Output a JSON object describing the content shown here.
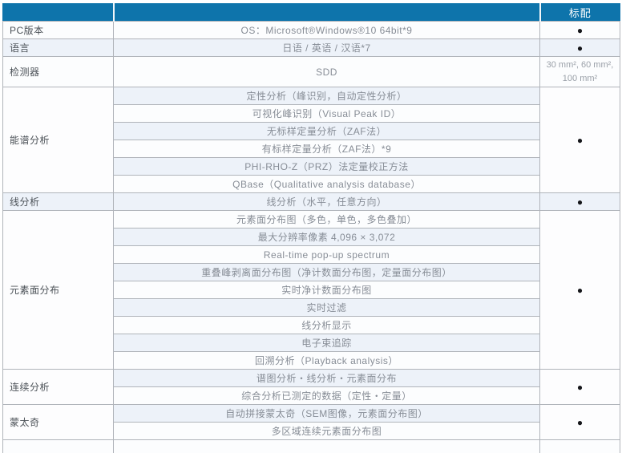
{
  "colors": {
    "header_bg": "#0e74ab",
    "row_bg": "#fcfdfe",
    "row_alt_bg": "#edf2f9",
    "border": "#b0b4ba",
    "label_text": "#4b5157",
    "body_text": "#878d96",
    "header_text": "#ffffff",
    "bullet_color": "#15161a"
  },
  "header": {
    "category_label": "",
    "feature_label": "",
    "standard_label": "标配"
  },
  "bullet_glyph": "●",
  "groups": [
    {
      "label": "PC版本",
      "standard": "●",
      "items": [
        "OS：Microsoft®Windows®10 64bit*9"
      ]
    },
    {
      "label": "语言",
      "standard": "●",
      "items": [
        "日语 / 英语 / 汉语*7"
      ]
    },
    {
      "label": "检测器",
      "standard": "30 mm², 60 mm², 100 mm²",
      "tall": true,
      "items": [
        "SDD"
      ]
    },
    {
      "label": "能谱分析",
      "standard": "●",
      "items": [
        "定性分析（峰识别，自动定性分析）",
        "可视化峰识别（Visual Peak ID）",
        "无标样定量分析（ZAF法）",
        "有标样定量分析（ZAF法）*9",
        "PHI-RHO-Z（PRZ）法定量校正方法",
        "QBase（Qualitative analysis database）"
      ]
    },
    {
      "label": "线分析",
      "standard": "●",
      "items": [
        "线分析（水平，任意方向）"
      ]
    },
    {
      "label": "元素面分布",
      "standard": "●",
      "items": [
        "元素面分布图（多色，单色，多色叠加）",
        "最大分辨率像素 4,096 × 3,072",
        "Real-time pop-up spectrum",
        "重叠峰剥离面分布图（净计数面分布图，定量面分布图）",
        "实时净计数面分布图",
        "实时过滤",
        "线分析显示",
        "电子束追踪",
        "回溯分析（Playback analysis）"
      ]
    },
    {
      "label": "连续分析",
      "standard": "●",
      "items": [
        "谱图分析・线分析・元素面分布",
        "综合分析已测定的数据（定性・定量）"
      ]
    },
    {
      "label": "蒙太奇",
      "standard": "●",
      "items": [
        "自动拼接蒙太奇（SEM图像，元素面分布图）",
        "多区域连续元素面分布图"
      ]
    }
  ]
}
